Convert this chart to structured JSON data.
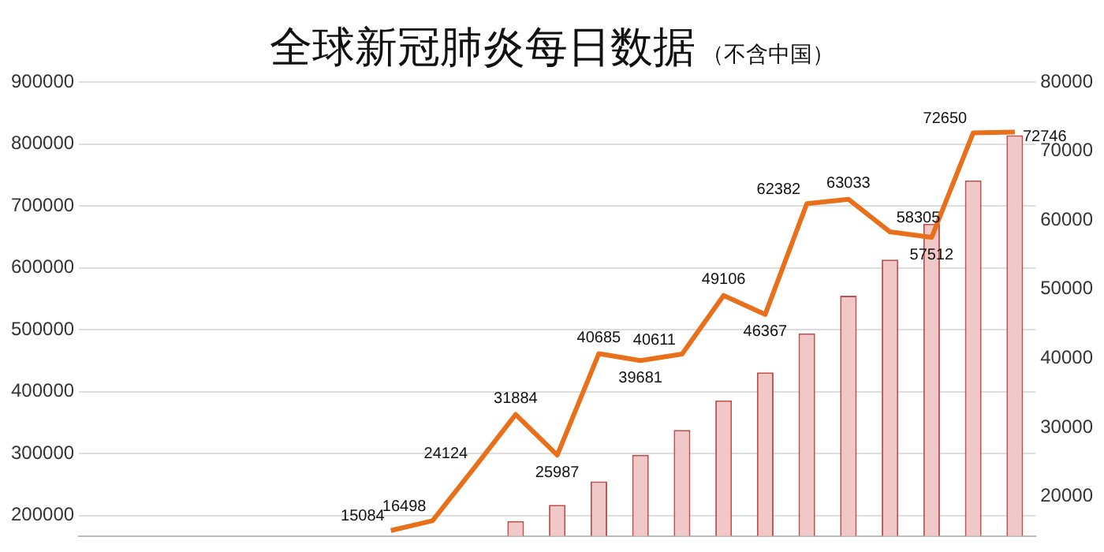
{
  "chart_data": {
    "type": "bar",
    "title": "全球新冠肺炎每日数据",
    "subtitle": "（不含中国）",
    "categories": [
      null,
      null,
      null,
      null,
      null,
      null,
      null,
      null,
      null,
      null,
      null,
      null,
      null,
      null,
      null,
      null,
      null,
      null,
      null,
      null,
      null,
      null,
      null
    ],
    "series": [
      {
        "color": "#f0c8c8",
        "values": [
          null,
          null,
          null,
          null,
          null,
          null,
          null,
          null,
          null,
          null,
          191000,
          217000,
          255000,
          298000,
          338000,
          386000,
          431000,
          494000,
          555000,
          613000,
          671000,
          741000,
          814000
        ]
      },
      {
        "type": "line",
        "axis": "y2",
        "color": "#e8701a",
        "values": [
          null,
          null,
          null,
          null,
          null,
          null,
          null,
          15084,
          16498,
          24124,
          31884,
          25987,
          40685,
          39681,
          40611,
          49106,
          46367,
          62382,
          63033,
          58305,
          57512,
          72650,
          72746
        ],
        "value_labels": [
          null,
          null,
          null,
          null,
          null,
          null,
          null,
          "15084",
          "16498",
          "24124",
          "31884",
          "25987",
          "40685",
          "39681",
          "40611",
          "49106",
          "46367",
          "62382",
          "63033",
          "58305",
          "57512",
          "72650",
          "72746"
        ]
      }
    ],
    "ylim": [
      167000,
      900000
    ],
    "yticks": [
      200000,
      300000,
      400000,
      500000,
      600000,
      700000,
      800000,
      900000
    ],
    "y2lim": [
      14300,
      80000
    ],
    "y2ticks": [
      20000,
      30000,
      40000,
      50000,
      60000,
      70000,
      80000
    ],
    "grid": "y",
    "legend": false,
    "marker": "none",
    "line_style": "solid"
  }
}
